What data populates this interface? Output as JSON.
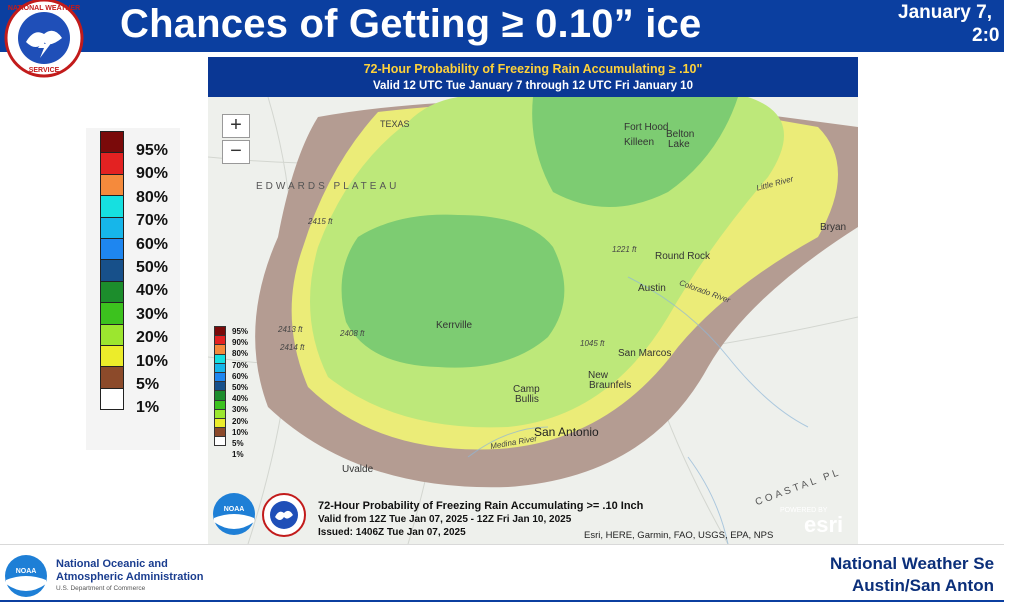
{
  "header": {
    "title": "Chances of Getting ≥ 0.10” ice",
    "date_line1": "January 7,",
    "date_line2": "2:0"
  },
  "legend": {
    "items": [
      {
        "label": "95%",
        "color": "#7a0a0a"
      },
      {
        "label": "90%",
        "color": "#e32222"
      },
      {
        "label": "80%",
        "color": "#f58a3c"
      },
      {
        "label": "70%",
        "color": "#16e0e0"
      },
      {
        "label": "60%",
        "color": "#16b6ea"
      },
      {
        "label": "50%",
        "color": "#1e86f0"
      },
      {
        "label": "40%",
        "color": "#17508a"
      },
      {
        "label": "30%",
        "color": "#1c8d2c"
      },
      {
        "label": "20%",
        "color": "#3cc21e"
      },
      {
        "label": "10%",
        "color": "#9ce62f"
      },
      {
        "label": "5%",
        "color": "#ecec2a"
      },
      {
        "label": "1%",
        "color": "#8c4a2a"
      },
      {
        "label": "",
        "color": "#ffffff"
      }
    ]
  },
  "map": {
    "title": "72-Hour Probability of Freezing Rain Accumulating ≥ .10\"",
    "subtitle": "Valid 12 UTC Tue January 7 through 12 UTC Fri January 10",
    "zoom_in": "+",
    "zoom_out": "−",
    "labels": {
      "texas": "TEXAS",
      "edwards": "EDWARDS PLATEAU",
      "coastal": "COASTAL PL",
      "fort_hood": "Fort Hood",
      "belton": "Belton",
      "belton2": "Lake",
      "killeen": "Killeen",
      "bryan": "Bryan",
      "round_rock": "Round Rock",
      "austin": "Austin",
      "kerrville": "Kerrville",
      "san_marcos": "San Marcos",
      "new_braunfels1": "New",
      "new_braunfels2": "Braunfels",
      "camp_bullis1": "Camp",
      "camp_bullis2": "Bullis",
      "san_antonio": "San Antonio",
      "uvalde": "Uvalde",
      "colorado_river": "Colorado River",
      "little_river": "Little River",
      "medina_river": "Medina River",
      "e2415": "2415 ft",
      "e2413": "2413 ft",
      "e2414": "2414 ft",
      "e2408": "2408 ft",
      "e1221": "1221 ft",
      "e1045": "1045 ft"
    },
    "inset_legend": [
      "95%",
      "90%",
      "80%",
      "70%",
      "60%",
      "50%",
      "40%",
      "30%",
      "20%",
      "10%",
      "5%",
      "1%",
      ""
    ],
    "footer_line1": "72-Hour Probability of Freezing Rain Accumulating >= .10 Inch",
    "footer_line2": "Valid from 12Z Tue Jan 07, 2025 - 12Z Fri Jan 10, 2025",
    "footer_line3": "Issued: 1406Z Tue Jan 07, 2025",
    "credits": "Esri, HERE, Garmin, FAO, USGS, EPA, NPS",
    "esri_small": "POWERED BY",
    "esri": "esri"
  },
  "footer": {
    "noaa_line1": "National Oceanic and",
    "noaa_line2": "Atmospheric Administration",
    "noaa_line3": "U.S. Department of Commerce",
    "nws_line1": "National Weather Se",
    "nws_line2": "Austin/San Anton"
  }
}
